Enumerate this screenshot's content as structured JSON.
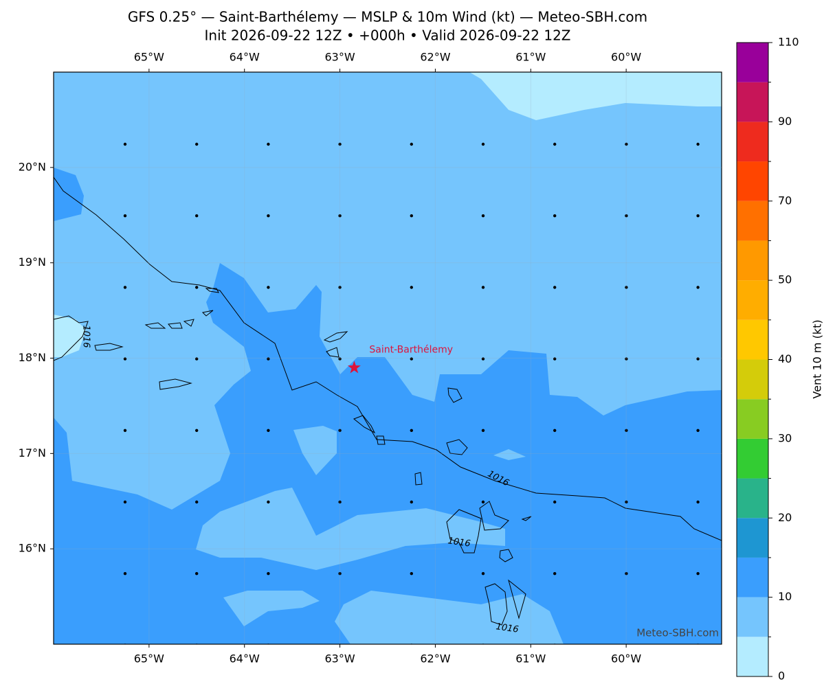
{
  "header": {
    "title": "GFS 0.25° — Saint-Barthélemy — MSLP & 10m Wind (kt) — Meteo-SBH.com",
    "subtitle": "Init 2026-09-22 12Z • +000h • Valid 2026-09-22 12Z"
  },
  "map": {
    "lon_range": [
      -66,
      -59
    ],
    "lat_range": [
      15,
      21
    ],
    "lon_ticks": [
      {
        "value": -65,
        "label": "65°W"
      },
      {
        "value": -64,
        "label": "64°W"
      },
      {
        "value": -63,
        "label": "63°W"
      },
      {
        "value": -62,
        "label": "62°W"
      },
      {
        "value": -61,
        "label": "61°W"
      },
      {
        "value": -60,
        "label": "60°W"
      }
    ],
    "lat_ticks": [
      {
        "value": 20,
        "label": "20°N"
      },
      {
        "value": 19,
        "label": "19°N"
      },
      {
        "value": 18,
        "label": "18°N"
      },
      {
        "value": 17,
        "label": "17°N"
      },
      {
        "value": 16,
        "label": "16°N"
      }
    ],
    "place": {
      "label": "Saint-Barthélemy",
      "lon": -62.85,
      "lat": 17.9
    },
    "isobar_labels": [
      "1016",
      "1016",
      "1016",
      "1016"
    ],
    "watermark": "Meteo-SBH.com"
  },
  "colorbar": {
    "label": "Vent 10 m (kt)",
    "levels": [
      0,
      5,
      10,
      15,
      20,
      25,
      30,
      35,
      40,
      45,
      50,
      60,
      70,
      80,
      90,
      100,
      110
    ],
    "colors": [
      "#b4ecff",
      "#75c5fd",
      "#3a9efd",
      "#1e96d2",
      "#29b38a",
      "#33cc33",
      "#88cc22",
      "#d4cc0a",
      "#ffc800",
      "#ffad00",
      "#ff9900",
      "#ff7000",
      "#ff4500",
      "#ee2b1e",
      "#c71558",
      "#99009a"
    ],
    "ticks": [
      0,
      10,
      20,
      30,
      40,
      50,
      70,
      90,
      110
    ]
  }
}
